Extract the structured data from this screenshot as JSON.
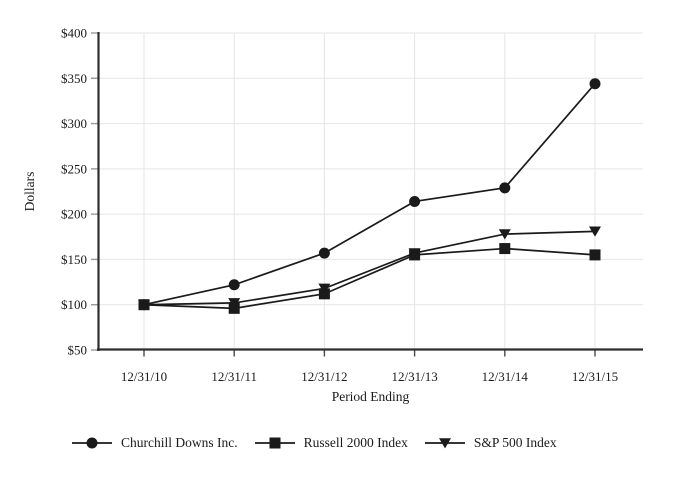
{
  "chart_data": {
    "type": "line",
    "x_categories": [
      "12/31/10",
      "12/31/11",
      "12/31/12",
      "12/31/13",
      "12/31/14",
      "12/31/15"
    ],
    "series": [
      {
        "name": "Churchill Downs Inc.",
        "marker": "circle",
        "values": [
          100,
          122,
          157,
          214,
          229,
          344
        ]
      },
      {
        "name": "Russell 2000 Index",
        "marker": "square",
        "values": [
          100,
          96,
          112,
          155,
          162,
          155
        ]
      },
      {
        "name": "S&P 500 Index",
        "marker": "triangle-down",
        "values": [
          100,
          102,
          118,
          157,
          178,
          181
        ]
      }
    ],
    "xlabel": "Period Ending",
    "ylabel": "Dollars",
    "ylim": [
      50,
      400
    ],
    "yticks": [
      {
        "value": 50,
        "label": "$50"
      },
      {
        "value": 100,
        "label": "$100"
      },
      {
        "value": 150,
        "label": "$150"
      },
      {
        "value": 200,
        "label": "$200"
      },
      {
        "value": 250,
        "label": "$250"
      },
      {
        "value": 300,
        "label": "$300"
      },
      {
        "value": 350,
        "label": "$350"
      },
      {
        "value": 400,
        "label": "$400"
      }
    ],
    "grid": true,
    "legend_position": "bottom",
    "colors": {
      "series": "#1a1a1a",
      "grid": "#e5e5e5",
      "axis": "#2e2e2e",
      "y_tick": "#999999",
      "x_tick": "#4a4a4a",
      "text": "#1a1a1a"
    }
  }
}
